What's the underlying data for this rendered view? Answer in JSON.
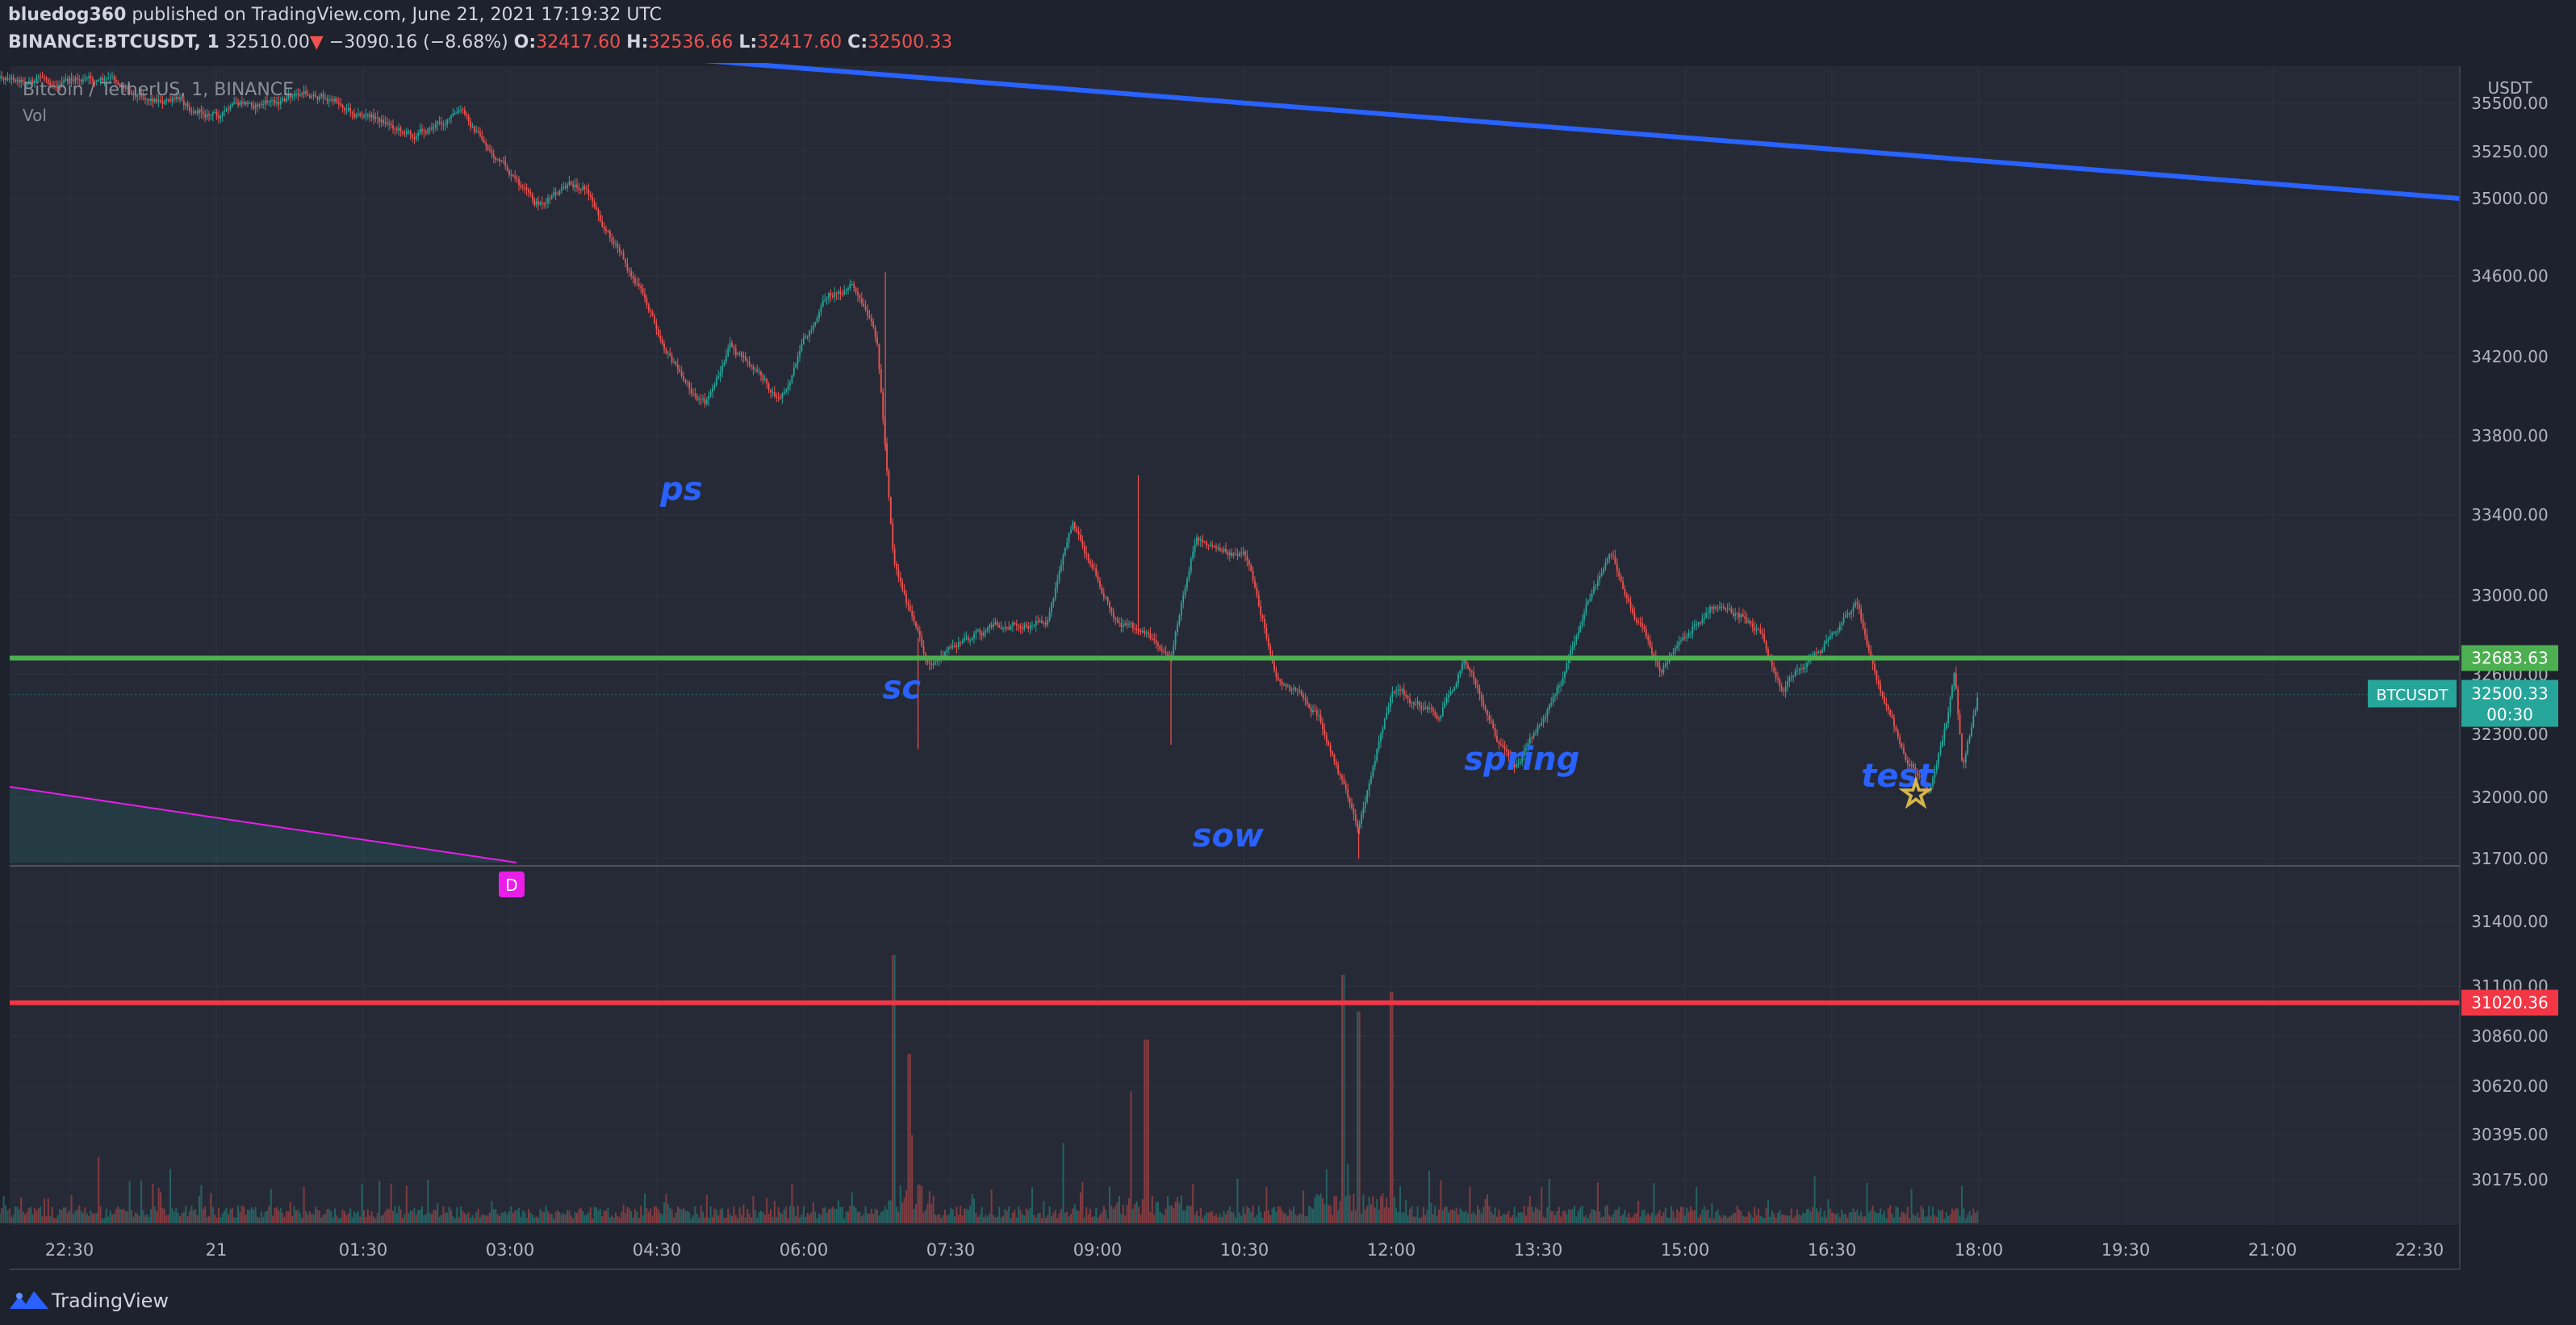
{
  "header": {
    "author": "bluedog360",
    "published_text": " published on TradingView.com, June 21, 2021 17:19:32 UTC",
    "symbol": "BINANCE:BTCUSDT, 1",
    "last_price": "32510.00",
    "change_arrow": "▼",
    "change": "−3090.16 (−8.68%)",
    "open_label": "O:",
    "open": "32417.60",
    "high_label": "H:",
    "high": "32536.66",
    "low_label": "L:",
    "low": "32417.60",
    "close_label": "C:",
    "close": "32500.33"
  },
  "chart": {
    "instrument_label": "Bitcoin / TetherUS, 1, BINANCE",
    "volume_label": "Vol",
    "currency_label": "USDT",
    "colors": {
      "background": "#262a36",
      "up": "#26a69a",
      "down": "#ef5350",
      "trendline": "#2962ff",
      "resistance": "#4caf50",
      "support": "#f23645",
      "annotation": "#2962ff",
      "marker": "#e91ee9",
      "star": "#d4b54a"
    },
    "annotations": [
      {
        "text": "ps",
        "time": "04:45",
        "price": 33475
      },
      {
        "text": "sc",
        "time": "07:00",
        "price": 32480
      },
      {
        "text": "sow",
        "time": "10:20",
        "price": 31760
      },
      {
        "text": "spring",
        "time": "13:20",
        "price": 32130
      },
      {
        "text": "test",
        "time": "17:10",
        "price": 32050
      }
    ],
    "price_tags": [
      {
        "name": "resistance",
        "label": "32683.63",
        "color": "#4caf50"
      },
      {
        "name": "support",
        "label": "31020.36",
        "color": "#f23645"
      }
    ],
    "current_price": {
      "symbol": "BTCUSDT",
      "price": "32500.33",
      "countdown": "00:30",
      "color": "#26a69a"
    },
    "drawing_marker": "D",
    "footer_brand": "TradingView"
  },
  "chart_data": {
    "type": "candlestick",
    "interval": "1 minute",
    "y_axis": {
      "unit": "USDT",
      "ticks": [
        "35500.00",
        "35250.00",
        "35000.00",
        "34600.00",
        "34200.00",
        "33800.00",
        "33400.00",
        "33000.00",
        "32600.00",
        "32300.00",
        "32000.00",
        "31700.00",
        "31400.00",
        "31100.00",
        "30860.00",
        "30620.00",
        "30395.00",
        "30175.00"
      ]
    },
    "x_axis": {
      "ticks": [
        "22:30",
        "21",
        "01:30",
        "03:00",
        "04:30",
        "06:00",
        "07:30",
        "09:00",
        "10:30",
        "12:00",
        "13:30",
        "15:00",
        "16:30",
        "18:00",
        "19:30",
        "21:00",
        "22:30"
      ]
    },
    "price_path": [
      {
        "t": "21:45",
        "price": 35650
      },
      {
        "t": "23:00",
        "price": 35600
      },
      {
        "t": "00:00",
        "price": 35450
      },
      {
        "t": "01:00",
        "price": 35550
      },
      {
        "t": "02:00",
        "price": 35350
      },
      {
        "t": "02:30",
        "price": 35450
      },
      {
        "t": "03:15",
        "price": 34950
      },
      {
        "t": "03:45",
        "price": 35080
      },
      {
        "t": "04:15",
        "price": 34600
      },
      {
        "t": "04:45",
        "price": 34100
      },
      {
        "t": "05:00",
        "price": 33950
      },
      {
        "t": "05:15",
        "price": 34250
      },
      {
        "t": "05:45",
        "price": 33990
      },
      {
        "t": "06:15",
        "price": 34500
      },
      {
        "t": "06:30",
        "price": 34560
      },
      {
        "t": "06:45",
        "price": 34250
      },
      {
        "t": "06:55",
        "price": 33200
      },
      {
        "t": "07:15",
        "price": 32650
      },
      {
        "t": "07:45",
        "price": 32800
      },
      {
        "t": "08:30",
        "price": 32900
      },
      {
        "t": "08:45",
        "price": 33350
      },
      {
        "t": "09:15",
        "price": 32850
      },
      {
        "t": "09:45",
        "price": 32700
      },
      {
        "t": "10:00",
        "price": 33300
      },
      {
        "t": "10:30",
        "price": 33200
      },
      {
        "t": "10:50",
        "price": 32600
      },
      {
        "t": "11:15",
        "price": 32400
      },
      {
        "t": "11:40",
        "price": 31850
      },
      {
        "t": "12:00",
        "price": 32500
      },
      {
        "t": "12:30",
        "price": 32400
      },
      {
        "t": "12:45",
        "price": 32700
      },
      {
        "t": "13:15",
        "price": 32100
      },
      {
        "t": "13:45",
        "price": 32600
      },
      {
        "t": "14:00",
        "price": 33000
      },
      {
        "t": "14:15",
        "price": 33200
      },
      {
        "t": "14:30",
        "price": 32900
      },
      {
        "t": "14:45",
        "price": 32650
      },
      {
        "t": "15:15",
        "price": 32950
      },
      {
        "t": "15:45",
        "price": 32850
      },
      {
        "t": "16:00",
        "price": 32550
      },
      {
        "t": "16:30",
        "price": 32800
      },
      {
        "t": "16:45",
        "price": 32950
      },
      {
        "t": "17:00",
        "price": 32500
      },
      {
        "t": "17:15",
        "price": 32200
      },
      {
        "t": "17:30",
        "price": 32050
      },
      {
        "t": "17:40",
        "price": 32350
      },
      {
        "t": "17:45",
        "price": 32650
      },
      {
        "t": "17:50",
        "price": 32150
      },
      {
        "t": "18:00",
        "price": 32500
      }
    ],
    "volume_spikes": [
      {
        "t": "06:55",
        "level": 0.95
      },
      {
        "t": "07:05",
        "level": 0.6
      },
      {
        "t": "09:30",
        "level": 0.65
      },
      {
        "t": "11:30",
        "level": 0.88
      },
      {
        "t": "11:40",
        "level": 0.75
      },
      {
        "t": "12:00",
        "level": 0.82
      }
    ],
    "lines": [
      {
        "name": "descending trendline",
        "from": {
          "t": "04:45",
          "price": 35730
        },
        "to": {
          "t": "end",
          "price": 35000
        }
      },
      {
        "name": "resistance",
        "price": 32683.63
      },
      {
        "name": "support",
        "price": 31020.36
      }
    ],
    "last": 32500.33
  }
}
